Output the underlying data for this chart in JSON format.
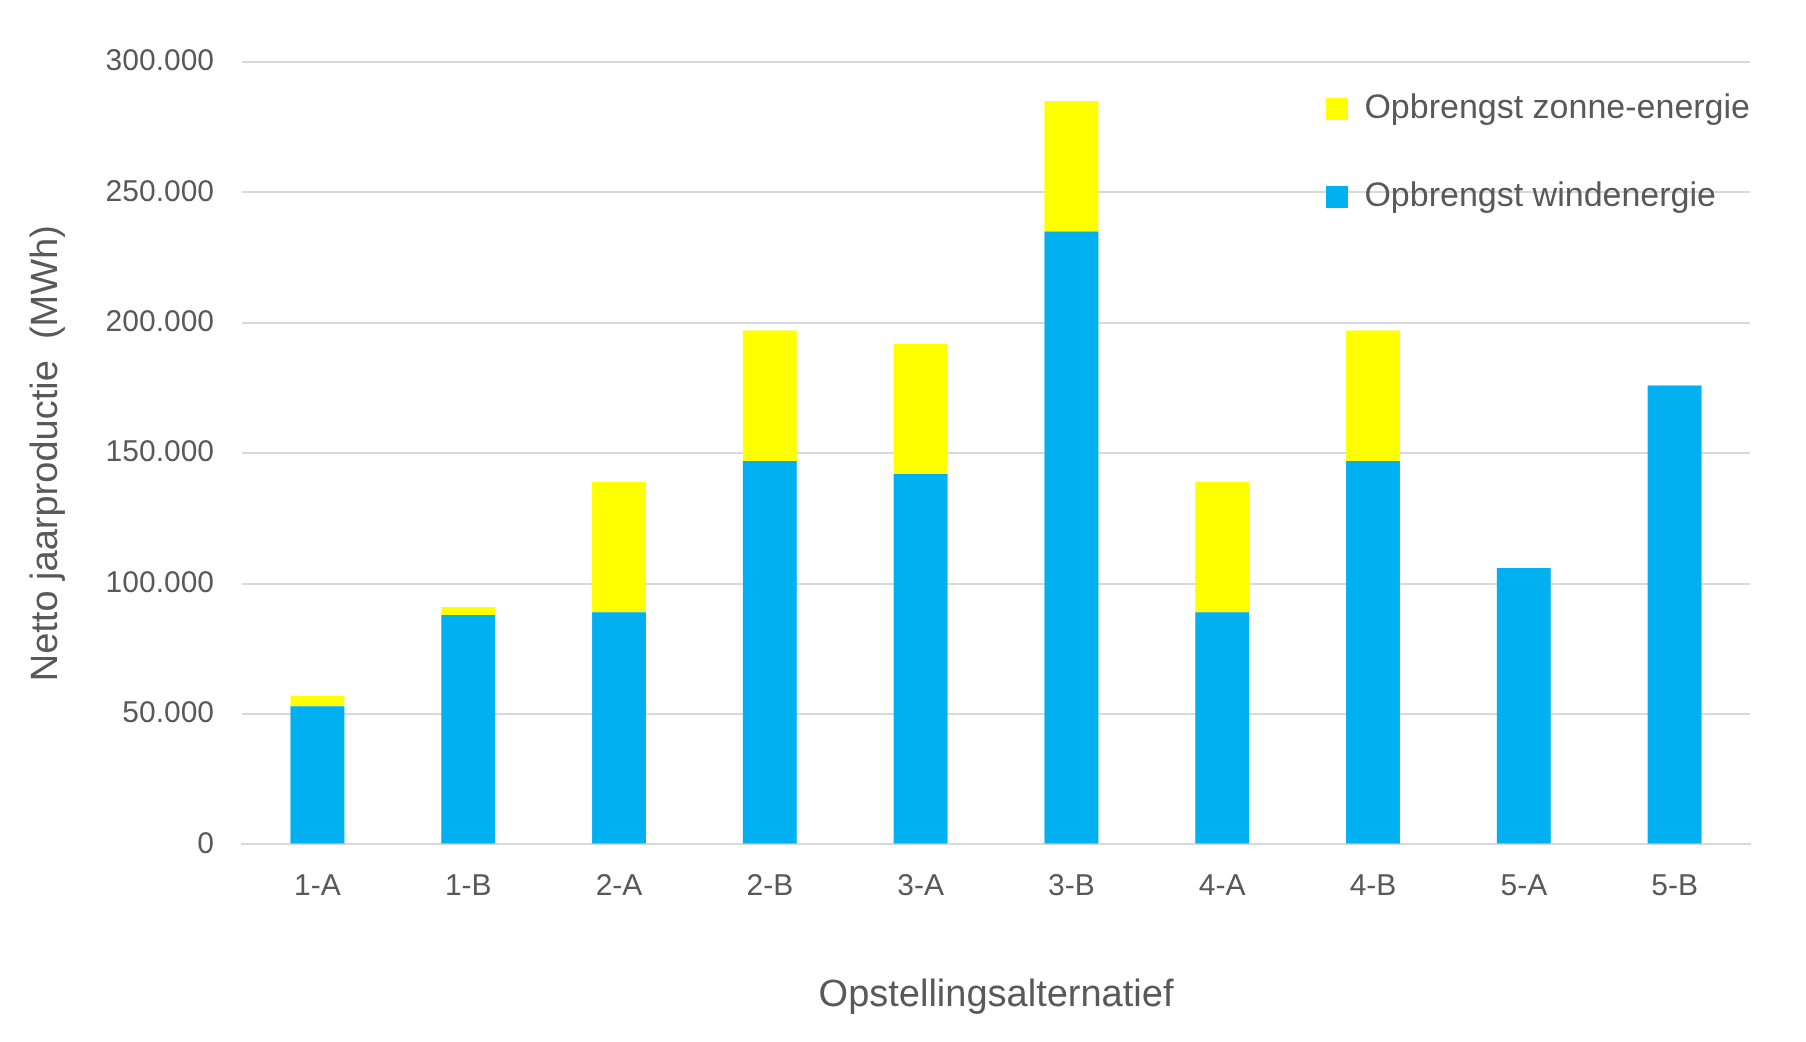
{
  "chart_data": {
    "type": "bar",
    "xlabel": "Opstellingsalternatief",
    "ylabel": "Netto jaarproductie  (MWh)",
    "categories": [
      "1-A",
      "1-B",
      "2-A",
      "2-B",
      "3-A",
      "3-B",
      "4-A",
      "4-B",
      "5-A",
      "5-B"
    ],
    "series": [
      {
        "name": "Opbrengst windenergie",
        "color": "#00b0f0",
        "values": [
          53000,
          88000,
          89000,
          147000,
          142000,
          235000,
          89000,
          147000,
          106000,
          176000
        ]
      },
      {
        "name": "Opbrengst zonne-energie",
        "color": "#ffff00",
        "values": [
          4000,
          3000,
          50000,
          50000,
          50000,
          50000,
          50000,
          50000,
          null,
          null
        ]
      }
    ],
    "stacked": true,
    "ylim": [
      0,
      300000
    ],
    "yticks": [
      {
        "value": 0,
        "label": "0"
      },
      {
        "value": 50000,
        "label": "50.000"
      },
      {
        "value": 100000,
        "label": "100.000"
      },
      {
        "value": 150000,
        "label": "150.000"
      },
      {
        "value": 200000,
        "label": "200.000"
      },
      {
        "value": 250000,
        "label": "250.000"
      },
      {
        "value": 300000,
        "label": "300.000"
      }
    ],
    "grid": "y",
    "legend": "top right"
  }
}
